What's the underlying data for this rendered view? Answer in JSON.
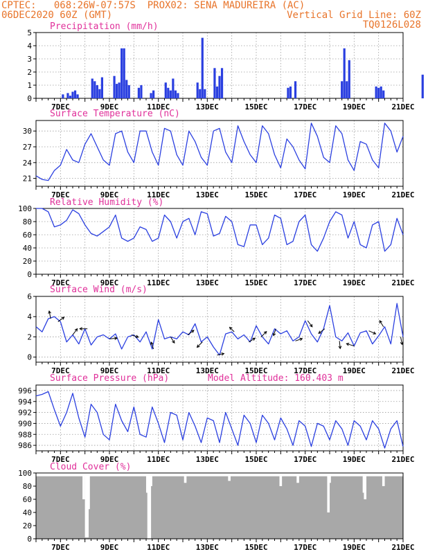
{
  "header": {
    "line1_left": "CPTEC:   068:26W-07:57S  PROX02: SENA MADUREIRA (AC)",
    "line2_left": "06DEC2020 60Z (GMT)",
    "line2_right": "Vertical Grid Line: 60Z",
    "line3_right": "TQ0126L028"
  },
  "colors": {
    "header_text": "#e8742a",
    "title_text": "#e0309a",
    "series": "#2a3fe0",
    "cloud": "#a8a8a8",
    "arrow": "#000000"
  },
  "x_axis": {
    "ticks": [
      "7DEC",
      "9DEC",
      "11DEC",
      "13DEC",
      "15DEC",
      "17DEC",
      "19DEC",
      "21DEC"
    ]
  },
  "chart_data": [
    {
      "type": "bar",
      "id": "precip",
      "title": "Precipitation (mm/h)",
      "ylim": [
        0,
        5
      ],
      "yticks": [
        0,
        1,
        2,
        3,
        4,
        5
      ],
      "grid": true,
      "x_days": [
        7.1,
        7.3,
        7.4,
        7.5,
        7.6,
        7.7,
        8.3,
        8.4,
        8.5,
        8.6,
        8.7,
        9.2,
        9.3,
        9.4,
        9.5,
        9.6,
        9.7,
        9.8,
        10.2,
        10.3,
        10.7,
        10.8,
        11.3,
        11.4,
        11.5,
        11.6,
        11.7,
        11.8,
        12.6,
        12.7,
        12.8,
        12.9,
        13.3,
        13.4,
        13.5,
        13.6,
        16.3,
        16.4,
        16.6,
        18.5,
        18.6,
        18.7,
        18.8,
        19.9,
        20.0,
        20.1,
        20.2,
        21.8
      ],
      "values": [
        0.3,
        0.4,
        0.2,
        0.5,
        0.6,
        0.3,
        1.5,
        1.3,
        1.0,
        0.7,
        1.6,
        1.7,
        1.1,
        1.2,
        3.8,
        3.8,
        1.4,
        1.0,
        0.8,
        1.0,
        0.4,
        0.6,
        1.2,
        0.8,
        0.6,
        1.5,
        0.6,
        0.4,
        1.2,
        0.7,
        4.6,
        0.7,
        2.3,
        0.9,
        1.7,
        2.3,
        0.8,
        0.9,
        1.3,
        1.3,
        3.8,
        1.3,
        2.9,
        0.9,
        0.8,
        0.9,
        0.6,
        1.8
      ]
    },
    {
      "type": "line",
      "id": "temp",
      "title": "Surface Temperature (nC)",
      "ylim": [
        19.5,
        32
      ],
      "yticks": [
        21,
        24,
        27,
        30
      ],
      "grid": true,
      "x_days": [
        6,
        6.25,
        6.5,
        6.75,
        7,
        7.25,
        7.5,
        7.75,
        8,
        8.25,
        8.5,
        8.75,
        9,
        9.25,
        9.5,
        9.75,
        10,
        10.25,
        10.5,
        10.75,
        11,
        11.25,
        11.5,
        11.75,
        12,
        12.25,
        12.5,
        12.75,
        13,
        13.25,
        13.5,
        13.75,
        14,
        14.25,
        14.5,
        14.75,
        15,
        15.25,
        15.5,
        15.75,
        16,
        16.25,
        16.5,
        16.75,
        17,
        17.25,
        17.5,
        17.75,
        18,
        18.25,
        18.5,
        18.75,
        19,
        19.25,
        19.5,
        19.75,
        20,
        20.25,
        20.5,
        20.75,
        21
      ],
      "values": [
        21.5,
        20.8,
        20.6,
        22.5,
        23.5,
        26.5,
        24.5,
        24,
        27.5,
        29.5,
        27,
        24.5,
        23.5,
        29.5,
        30,
        26,
        24,
        30,
        30,
        26,
        23.5,
        30.5,
        30,
        25.5,
        23.5,
        30,
        28,
        25,
        23.5,
        30,
        30.5,
        26,
        24,
        31,
        28,
        25.5,
        24,
        31,
        29.5,
        25.5,
        23,
        28.5,
        27,
        24.5,
        22.8,
        31.5,
        29,
        25,
        24,
        31,
        29.5,
        24.5,
        22.5,
        28,
        27.5,
        24.5,
        23,
        31.5,
        30,
        26,
        29
      ]
    },
    {
      "type": "line",
      "id": "rh",
      "title": "Relative Humidity (%)",
      "ylim": [
        0,
        100
      ],
      "yticks": [
        0,
        20,
        40,
        60,
        80,
        100
      ],
      "grid": true,
      "x_days": [
        6,
        6.25,
        6.5,
        6.75,
        7,
        7.25,
        7.5,
        7.75,
        8,
        8.25,
        8.5,
        8.75,
        9,
        9.25,
        9.5,
        9.75,
        10,
        10.25,
        10.5,
        10.75,
        11,
        11.25,
        11.5,
        11.75,
        12,
        12.25,
        12.5,
        12.75,
        13,
        13.25,
        13.5,
        13.75,
        14,
        14.25,
        14.5,
        14.75,
        15,
        15.25,
        15.5,
        15.75,
        16,
        16.25,
        16.5,
        16.75,
        17,
        17.25,
        17.5,
        17.75,
        18,
        18.25,
        18.5,
        18.75,
        19,
        19.25,
        19.5,
        19.75,
        20,
        20.25,
        20.5,
        20.75,
        21
      ],
      "values": [
        100,
        100,
        95,
        72,
        75,
        82,
        98,
        92,
        75,
        62,
        58,
        65,
        72,
        90,
        55,
        50,
        55,
        72,
        68,
        50,
        55,
        90,
        80,
        55,
        80,
        85,
        60,
        95,
        92,
        58,
        62,
        88,
        80,
        45,
        42,
        75,
        75,
        45,
        55,
        90,
        85,
        45,
        50,
        80,
        90,
        45,
        35,
        55,
        80,
        95,
        90,
        55,
        80,
        45,
        40,
        75,
        80,
        35,
        45,
        85,
        60
      ]
    },
    {
      "type": "line",
      "id": "wind",
      "title": "Surface Wind (m/s)",
      "ylim": [
        -0.5,
        6
      ],
      "yticks": [
        0,
        2,
        4,
        6
      ],
      "grid": true,
      "x_days": [
        6,
        6.25,
        6.5,
        6.75,
        7,
        7.25,
        7.5,
        7.75,
        8,
        8.25,
        8.5,
        8.75,
        9,
        9.25,
        9.5,
        9.75,
        10,
        10.25,
        10.5,
        10.75,
        11,
        11.25,
        11.5,
        11.75,
        12,
        12.25,
        12.5,
        12.75,
        13,
        13.25,
        13.5,
        13.75,
        14,
        14.25,
        14.5,
        14.75,
        15,
        15.25,
        15.5,
        15.75,
        16,
        16.25,
        16.5,
        16.75,
        17,
        17.25,
        17.5,
        17.75,
        18,
        18.25,
        18.5,
        18.75,
        19,
        19.25,
        19.5,
        19.75,
        20,
        20.25,
        20.5,
        20.75,
        21
      ],
      "values": [
        3,
        2.5,
        3.8,
        4,
        3.5,
        1.5,
        2.2,
        1.3,
        2.8,
        1.2,
        2,
        2.2,
        1.8,
        2.3,
        0.8,
        2,
        2.2,
        1.5,
        2.5,
        0.8,
        3.7,
        1.8,
        2,
        1.8,
        2.5,
        2.2,
        3.3,
        1.5,
        2,
        1,
        0.2,
        2.3,
        2.5,
        1.8,
        2.2,
        1.5,
        3.1,
        2,
        1.3,
        2.8,
        2.3,
        2.6,
        1.6,
        2,
        3.6,
        2.3,
        1.5,
        2.8,
        5.1,
        2,
        1.6,
        2.4,
        1.1,
        2.4,
        2.6,
        1.3,
        2.1,
        3,
        1.3,
        5.3,
        2
      ],
      "arrows": [
        {
          "x": 6.6,
          "u": -0.2,
          "v": 1.0
        },
        {
          "x": 6.9,
          "u": 0.8,
          "v": 0.6
        },
        {
          "x": 7.5,
          "u": 0.6,
          "v": 0.8
        },
        {
          "x": 8.1,
          "u": -1.0,
          "v": 0.0
        },
        {
          "x": 9.0,
          "u": 1.0,
          "v": 0.1
        },
        {
          "x": 9.9,
          "u": 0.9,
          "v": -0.3
        },
        {
          "x": 10.8,
          "u": -0.3,
          "v": 0.9
        },
        {
          "x": 11.5,
          "u": 0.5,
          "v": -0.8
        },
        {
          "x": 12.2,
          "u": 0.8,
          "v": 0.6
        },
        {
          "x": 12.8,
          "u": -0.7,
          "v": -0.7
        },
        {
          "x": 13.4,
          "u": 0.9,
          "v": 0.2
        },
        {
          "x": 14.1,
          "u": -0.6,
          "v": 0.6
        },
        {
          "x": 14.7,
          "u": 0.8,
          "v": 0.5
        },
        {
          "x": 15.2,
          "u": 0.7,
          "v": 0.7
        },
        {
          "x": 15.8,
          "u": -0.3,
          "v": -0.9
        },
        {
          "x": 16.6,
          "u": 0.9,
          "v": 0.3
        },
        {
          "x": 17.1,
          "u": 0.6,
          "v": -0.8
        },
        {
          "x": 17.8,
          "u": -0.8,
          "v": -0.6
        },
        {
          "x": 18.4,
          "u": 0.1,
          "v": -1.0
        },
        {
          "x": 19.0,
          "u": -1.0,
          "v": 0.3
        },
        {
          "x": 19.6,
          "u": 0.9,
          "v": -0.4
        },
        {
          "x": 20.2,
          "u": -0.5,
          "v": 0.8
        },
        {
          "x": 20.9,
          "u": 0.2,
          "v": -1.0
        }
      ]
    },
    {
      "type": "line",
      "id": "pres",
      "title": "Surface Pressure (hPa)",
      "annotation": "Model Altitude: 160.403 m",
      "ylim": [
        985,
        997
      ],
      "yticks": [
        986,
        988,
        990,
        992,
        994,
        996
      ],
      "grid": true,
      "x_days": [
        6,
        6.25,
        6.5,
        6.75,
        7,
        7.25,
        7.5,
        7.75,
        8,
        8.25,
        8.5,
        8.75,
        9,
        9.25,
        9.5,
        9.75,
        10,
        10.25,
        10.5,
        10.75,
        11,
        11.25,
        11.5,
        11.75,
        12,
        12.25,
        12.5,
        12.75,
        13,
        13.25,
        13.5,
        13.75,
        14,
        14.25,
        14.5,
        14.75,
        15,
        15.25,
        15.5,
        15.75,
        16,
        16.25,
        16.5,
        16.75,
        17,
        17.25,
        17.5,
        17.75,
        18,
        18.25,
        18.5,
        18.75,
        19,
        19.25,
        19.5,
        19.75,
        20,
        20.25,
        20.5,
        20.75,
        21
      ],
      "values": [
        995,
        995.3,
        995.8,
        992.5,
        989.5,
        992,
        995.5,
        991,
        987.5,
        993.5,
        992,
        988,
        987,
        993.5,
        990.5,
        988.5,
        993,
        988,
        987.5,
        993,
        990,
        986.5,
        992,
        991.5,
        987,
        992,
        989.5,
        986.5,
        991,
        990.5,
        986.5,
        992,
        989,
        986,
        991.5,
        990,
        986.5,
        991.5,
        990,
        987,
        991,
        989,
        986,
        990.5,
        989.5,
        985.8,
        990,
        989.5,
        987,
        990.5,
        989,
        986,
        990.5,
        989.5,
        987,
        990.5,
        989,
        985.5,
        989,
        990.5,
        985.8
      ]
    },
    {
      "type": "bar",
      "id": "cloud",
      "title": "Cloud Cover (%)",
      "ylim": [
        0,
        100
      ],
      "yticks": [
        0,
        20,
        40,
        60,
        80,
        100
      ],
      "grid": false,
      "base_cover": 95,
      "gaps": [
        {
          "x": 7.95,
          "value": 60
        },
        {
          "x": 8.05,
          "value": 2
        },
        {
          "x": 8.1,
          "value": 2
        },
        {
          "x": 8.15,
          "value": 45
        },
        {
          "x": 10.55,
          "value": 70
        },
        {
          "x": 10.6,
          "value": 0
        },
        {
          "x": 10.65,
          "value": 0
        },
        {
          "x": 10.7,
          "value": 80
        },
        {
          "x": 12.1,
          "value": 85
        },
        {
          "x": 13.9,
          "value": 88
        },
        {
          "x": 16.0,
          "value": 80
        },
        {
          "x": 16.7,
          "value": 85
        },
        {
          "x": 17.95,
          "value": 40
        },
        {
          "x": 18.0,
          "value": 85
        },
        {
          "x": 19.4,
          "value": 70
        },
        {
          "x": 19.45,
          "value": 60
        },
        {
          "x": 20.2,
          "value": 80
        }
      ]
    }
  ]
}
